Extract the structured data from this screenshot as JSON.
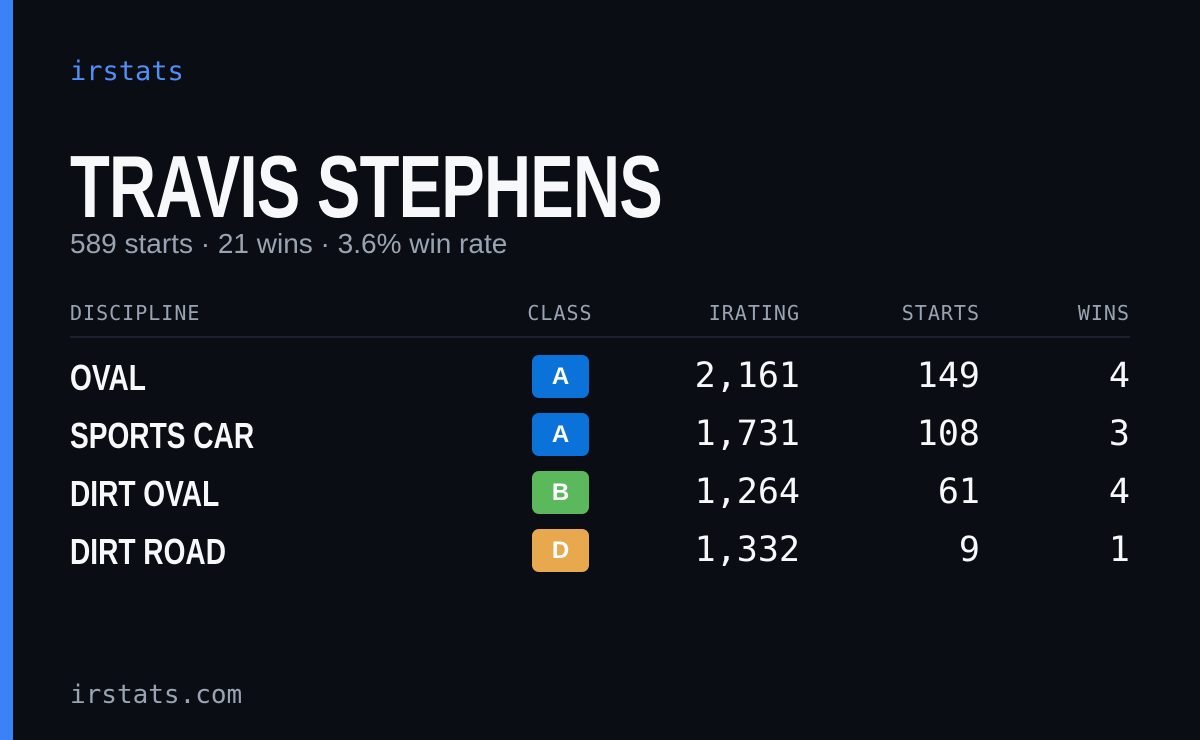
{
  "brand": "irstats",
  "driver": {
    "name": "TRAVIS STEPHENS",
    "summary": "589 starts · 21 wins · 3.6% win rate"
  },
  "table": {
    "headers": [
      "DISCIPLINE",
      "CLASS",
      "IRATING",
      "STARTS",
      "WINS"
    ],
    "rows": [
      {
        "discipline": "OVAL",
        "class": "A",
        "class_color": "#0b72d9",
        "irating": "2,161",
        "starts": "149",
        "wins": "4"
      },
      {
        "discipline": "SPORTS CAR",
        "class": "A",
        "class_color": "#0b72d9",
        "irating": "1,731",
        "starts": "108",
        "wins": "3"
      },
      {
        "discipline": "DIRT OVAL",
        "class": "B",
        "class_color": "#5cb85c",
        "irating": "1,264",
        "starts": "61",
        "wins": "4"
      },
      {
        "discipline": "DIRT ROAD",
        "class": "D",
        "class_color": "#e8a84e",
        "irating": "1,332",
        "starts": "9",
        "wins": "1"
      }
    ]
  },
  "footer": "irstats.com"
}
